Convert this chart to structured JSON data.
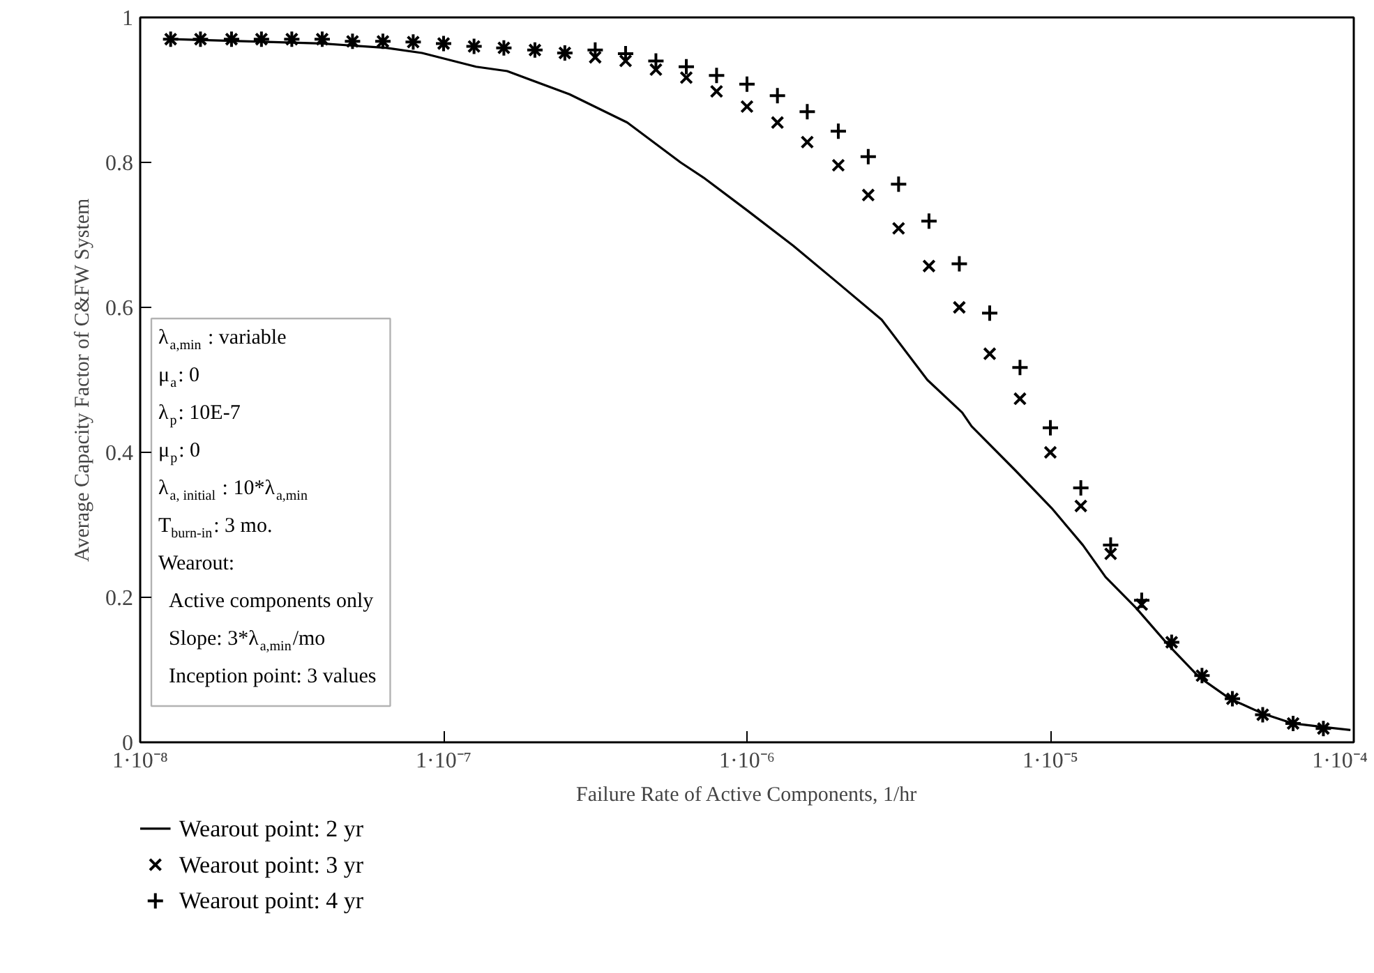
{
  "chart_data": {
    "type": "scatter",
    "xlabel": "Failure Rate of Active Components, 1/hr",
    "ylabel": "Average Capacity Factor of C&FW System",
    "log": "x",
    "xlim": [
      1e-08,
      0.0001
    ],
    "xticks": [
      {
        "value": 1e-08,
        "label": "1·10⁻⁸"
      },
      {
        "value": 1e-07,
        "label": "1·10⁻⁷"
      },
      {
        "value": 1e-06,
        "label": "1·10⁻⁶"
      },
      {
        "value": 1e-05,
        "label": "1·10⁻⁵"
      },
      {
        "value": 0.0001,
        "label": "1·10⁻⁴"
      }
    ],
    "ylim": [
      0,
      1
    ],
    "yticks": [
      0,
      0.2,
      0.4,
      0.6,
      0.8,
      1
    ],
    "grid": false,
    "legend": "bottom",
    "x": [
      1.26e-08,
      1.58e-08,
      2e-08,
      2.51e-08,
      3.16e-08,
      3.98e-08,
      5.01e-08,
      6.31e-08,
      7.94e-08,
      1e-07,
      1.26e-07,
      1.58e-07,
      2e-07,
      2.51e-07,
      3.16e-07,
      3.98e-07,
      5.01e-07,
      6.31e-07,
      7.94e-07,
      1e-06,
      1.26e-06,
      1.58e-06,
      2e-06,
      2.51e-06,
      3.16e-06,
      3.98e-06,
      5.01e-06,
      6.31e-06,
      7.94e-06,
      1e-05,
      1.26e-05,
      1.58e-05,
      2e-05,
      2.51e-05,
      3.16e-05,
      3.98e-05,
      5.01e-05,
      6.31e-05,
      7.94e-05
    ],
    "series": [
      {
        "name": "Wearout point: 2 yr",
        "type": "line",
        "color": "#000000",
        "line_style": "solid",
        "x": [
          1.26e-08,
          3.96e-08,
          6.46e-08,
          8.49e-08,
          1.28e-07,
          1.62e-07,
          2.6e-07,
          4.03e-07,
          6.04e-07,
          7.19e-07,
          1e-06,
          1.42e-06,
          1.99e-06,
          2.78e-06,
          3.93e-06,
          5.12e-06,
          5.5e-06,
          7.67e-06,
          1.01e-05,
          1.28e-05,
          1.52e-05,
          1.92e-05,
          2.45e-05,
          3.09e-05,
          3.91e-05,
          4.99e-05,
          6.3e-05,
          7.96e-05,
          9.75e-05
        ],
        "values": [
          0.97,
          0.964,
          0.958,
          0.951,
          0.932,
          0.926,
          0.894,
          0.855,
          0.8,
          0.779,
          0.734,
          0.685,
          0.634,
          0.583,
          0.5,
          0.455,
          0.436,
          0.375,
          0.323,
          0.272,
          0.228,
          0.185,
          0.134,
          0.09,
          0.06,
          0.04,
          0.026,
          0.021,
          0.017
        ]
      },
      {
        "name": "Wearout point: 3 yr",
        "type": "scatter",
        "marker": "x",
        "color": "#000000",
        "values": [
          0.97,
          0.97,
          0.97,
          0.97,
          0.97,
          0.97,
          0.967,
          0.967,
          0.966,
          0.964,
          0.96,
          0.958,
          0.955,
          0.951,
          0.945,
          0.94,
          0.928,
          0.917,
          0.898,
          0.877,
          0.855,
          0.828,
          0.796,
          0.755,
          0.709,
          0.657,
          0.6,
          0.536,
          0.474,
          0.4,
          0.326,
          0.26,
          0.19,
          0.138,
          0.092,
          0.06,
          0.038,
          0.026,
          0.019
        ]
      },
      {
        "name": "Wearout point: 4 yr",
        "type": "scatter",
        "marker": "cross",
        "color": "#000000",
        "values": [
          0.97,
          0.97,
          0.97,
          0.97,
          0.97,
          0.97,
          0.967,
          0.967,
          0.966,
          0.964,
          0.96,
          0.958,
          0.955,
          0.951,
          0.955,
          0.95,
          0.94,
          0.932,
          0.92,
          0.908,
          0.892,
          0.87,
          0.843,
          0.808,
          0.77,
          0.719,
          0.66,
          0.592,
          0.517,
          0.434,
          0.351,
          0.272,
          0.196,
          0.138,
          0.092,
          0.06,
          0.038,
          0.026,
          0.019
        ]
      }
    ],
    "annotations": [
      "λ$_{a,min}$ : variable",
      "μ$_{a}$: 0",
      "λ$_{p}$: 10E-7",
      "μ$_{p}$: 0",
      "λ$_{a, initial}$ : 10*λ$_{a,min}$",
      "T$_{burn-in}$: 3 mo.",
      "Wearout:",
      "  Active components only",
      "  Slope: 3*λ$_{a,min}$/mo",
      "  Inception point: 3 values"
    ]
  }
}
